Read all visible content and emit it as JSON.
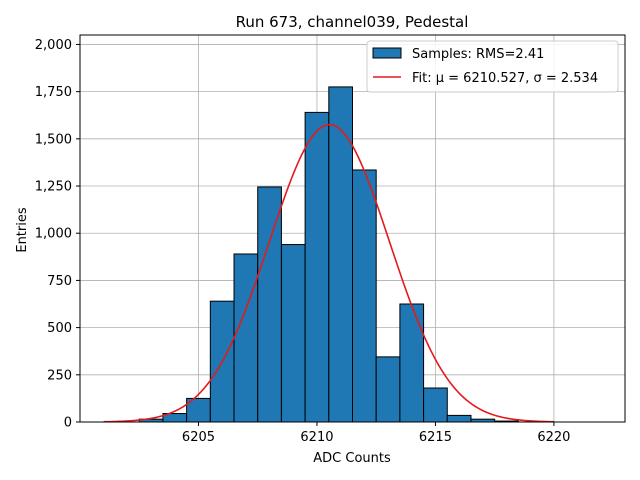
{
  "chart_data": {
    "type": "bar",
    "title": "Run 673, channel039, Pedestal",
    "xlabel": "ADC Counts",
    "ylabel": "Entries",
    "xlim": [
      6200,
      6223
    ],
    "ylim": [
      0,
      2050
    ],
    "xticks": [
      6205,
      6210,
      6215,
      6220
    ],
    "yticks": [
      0,
      250,
      500,
      750,
      1000,
      1250,
      1500,
      1750,
      2000
    ],
    "grid": true,
    "legend_position": "top-right",
    "bin_width": 1,
    "bins": [
      {
        "x": 6203,
        "value": 15
      },
      {
        "x": 6204,
        "value": 45
      },
      {
        "x": 6205,
        "value": 125
      },
      {
        "x": 6206,
        "value": 640
      },
      {
        "x": 6207,
        "value": 890
      },
      {
        "x": 6208,
        "value": 1245
      },
      {
        "x": 6209,
        "value": 940
      },
      {
        "x": 6210,
        "value": 1640
      },
      {
        "x": 6211,
        "value": 1775
      },
      {
        "x": 6212,
        "value": 1335
      },
      {
        "x": 6213,
        "value": 345
      },
      {
        "x": 6214,
        "value": 625
      },
      {
        "x": 6215,
        "value": 180
      },
      {
        "x": 6216,
        "value": 35
      },
      {
        "x": 6217,
        "value": 15
      },
      {
        "x": 6218,
        "value": 5
      }
    ],
    "fit": {
      "mu": 6210.527,
      "sigma": 2.534,
      "amplitude": 1575,
      "x_range": [
        6201,
        6220
      ]
    },
    "series": [
      {
        "name": "Samples: RMS=2.41",
        "kind": "histogram",
        "color": "#1f77b4",
        "edge": "#000000"
      },
      {
        "name": "Fit: μ = 6210.527, σ = 2.534",
        "kind": "line",
        "color": "#e41a1c"
      }
    ]
  }
}
